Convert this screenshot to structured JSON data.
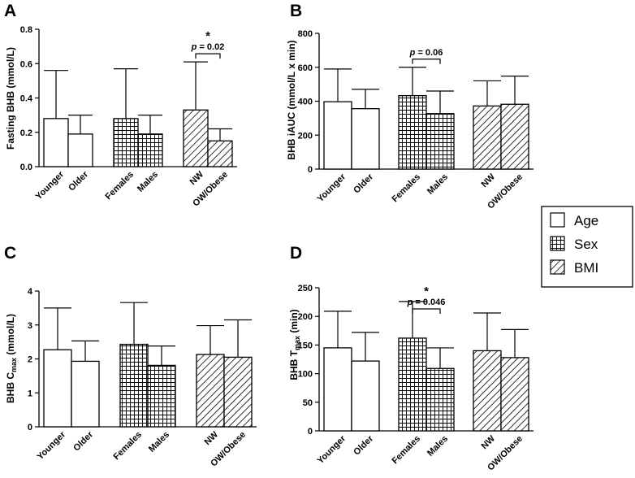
{
  "figure": {
    "colors": {
      "ink": "#000000",
      "fill": "#ffffff"
    },
    "groups": [
      {
        "key": "age",
        "label": "Age",
        "pattern": "none"
      },
      {
        "key": "sex",
        "label": "Sex",
        "pattern": "grid"
      },
      {
        "key": "bmi",
        "label": "BMI",
        "pattern": "hatch"
      }
    ]
  },
  "chart_data": [
    {
      "id": "A",
      "type": "bar",
      "letter": "A",
      "ylabel": "Fasting BHB (mmol/L)",
      "ylim": [
        0,
        0.8
      ],
      "yticks": [
        "0.0",
        "0.2",
        "0.4",
        "0.6",
        "0.8"
      ],
      "ytick_values": [
        0,
        0.2,
        0.4,
        0.6,
        0.8
      ],
      "categories": [
        "Younger",
        "Older",
        "Females",
        "Males",
        "NW",
        "OW/Obese"
      ],
      "groups": [
        "age",
        "age",
        "sex",
        "sex",
        "bmi",
        "bmi"
      ],
      "values": [
        0.28,
        0.19,
        0.28,
        0.19,
        0.33,
        0.15
      ],
      "errors_upper": [
        0.56,
        0.3,
        0.57,
        0.3,
        0.61,
        0.22
      ],
      "comparisons": [
        {
          "from": 4,
          "to": 5,
          "text": "p = 0.02",
          "star": "*"
        }
      ]
    },
    {
      "id": "B",
      "type": "bar",
      "letter": "B",
      "ylabel": "BHB iAUC (mmol/L x min)",
      "ylim": [
        0,
        800
      ],
      "yticks": [
        "0",
        "200",
        "400",
        "600",
        "800"
      ],
      "ytick_values": [
        0,
        200,
        400,
        600,
        800
      ],
      "categories": [
        "Younger",
        "Older",
        "Females",
        "Males",
        "NW",
        "OW/Obese"
      ],
      "groups": [
        "age",
        "age",
        "sex",
        "sex",
        "bmi",
        "bmi"
      ],
      "values": [
        397,
        356,
        433,
        327,
        372,
        382
      ],
      "errors_upper": [
        590,
        470,
        600,
        460,
        520,
        548
      ],
      "comparisons": [
        {
          "from": 2,
          "to": 3,
          "text": "p = 0.06",
          "star": ""
        }
      ]
    },
    {
      "id": "C",
      "type": "bar",
      "letter": "C",
      "ylabel_main": "BHB C",
      "ylabel_sub": "max",
      "ylabel_tail": " (mmol/L)",
      "ylim": [
        0,
        4
      ],
      "yticks": [
        "0",
        "1",
        "2",
        "3",
        "4"
      ],
      "ytick_values": [
        0,
        1,
        2,
        3,
        4
      ],
      "categories": [
        "Younger",
        "Older",
        "Females",
        "Males",
        "NW",
        "OW/Obese"
      ],
      "groups": [
        "age",
        "age",
        "sex",
        "sex",
        "bmi",
        "bmi"
      ],
      "values": [
        2.27,
        1.93,
        2.43,
        1.81,
        2.13,
        2.05
      ],
      "errors_upper": [
        3.5,
        2.53,
        3.66,
        2.38,
        2.98,
        3.15
      ],
      "comparisons": []
    },
    {
      "id": "D",
      "type": "bar",
      "letter": "D",
      "ylabel_main": "BHB T",
      "ylabel_sub": "max",
      "ylabel_tail": " (min)",
      "ylim": [
        0,
        250
      ],
      "yticks": [
        "0",
        "50",
        "100",
        "150",
        "200",
        "250"
      ],
      "ytick_values": [
        0,
        50,
        100,
        150,
        200,
        250
      ],
      "categories": [
        "Younger",
        "Older",
        "Females",
        "Males",
        "NW",
        "OW/Obese"
      ],
      "groups": [
        "age",
        "age",
        "sex",
        "sex",
        "bmi",
        "bmi"
      ],
      "values": [
        145,
        122,
        162,
        109,
        140,
        128
      ],
      "errors_upper": [
        209,
        172,
        226,
        145,
        206,
        177
      ],
      "comparisons": [
        {
          "from": 2,
          "to": 3,
          "text": "p = 0.046",
          "star": "*"
        }
      ]
    }
  ]
}
